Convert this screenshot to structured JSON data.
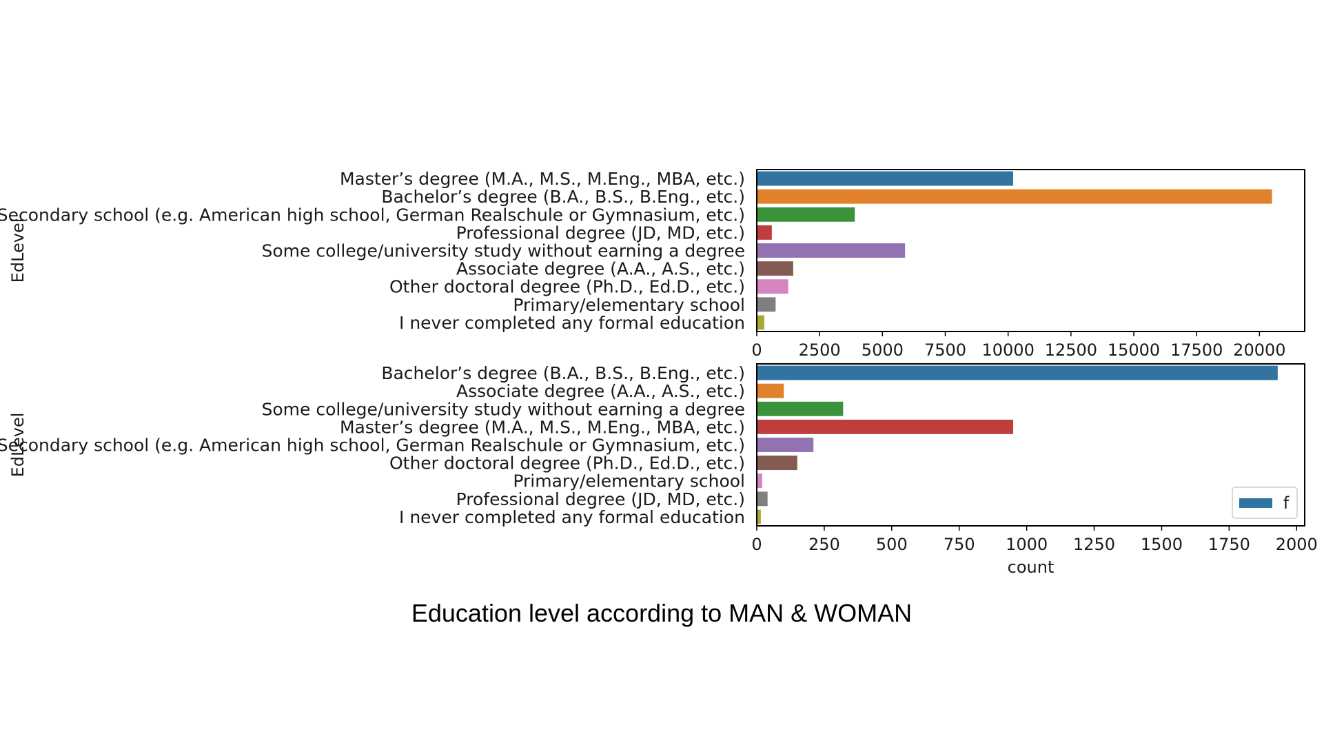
{
  "caption": "Education level according to MAN & WOMAN",
  "chart_data": [
    {
      "type": "bar",
      "orientation": "horizontal",
      "ylabel": "EdLevel",
      "xlabel": "",
      "xlim": [
        0,
        21800
      ],
      "xticks": [
        0,
        2500,
        5000,
        7500,
        10000,
        12500,
        15000,
        17500,
        20000
      ],
      "grid": false,
      "categories": [
        "Master’s degree (M.A., M.S., M.Eng., MBA, etc.)",
        "Bachelor’s degree (B.A., B.S., B.Eng., etc.)",
        "Secondary school (e.g. American high school, German Realschule or Gymnasium, etc.)",
        "Professional degree (JD, MD, etc.)",
        "Some college/university study without earning a degree",
        "Associate degree (A.A., A.S., etc.)",
        "Other doctoral degree (Ph.D., Ed.D., etc.)",
        "Primary/elementary school",
        "I never completed any formal education"
      ],
      "values": [
        10200,
        20500,
        3900,
        600,
        5900,
        1450,
        1250,
        750,
        300
      ],
      "colors": [
        "#3274a1",
        "#e1812c",
        "#3a923a",
        "#c03d3e",
        "#9372b2",
        "#845b53",
        "#d684bd",
        "#7f7f7f",
        "#a9aa35"
      ]
    },
    {
      "type": "bar",
      "orientation": "horizontal",
      "ylabel": "EdLevel",
      "xlabel": "count",
      "xlim": [
        0,
        2030
      ],
      "xticks": [
        0,
        250,
        500,
        750,
        1000,
        1250,
        1500,
        1750,
        2000
      ],
      "grid": false,
      "categories": [
        "Bachelor’s degree (B.A., B.S., B.Eng., etc.)",
        "Associate degree (A.A., A.S., etc.)",
        "Some college/university study without earning a degree",
        "Master’s degree (M.A., M.S., M.Eng., MBA, etc.)",
        "Secondary school (e.g. American high school, German Realschule or Gymnasium, etc.)",
        "Other doctoral degree (Ph.D., Ed.D., etc.)",
        "Primary/elementary school",
        "Professional degree (JD, MD, etc.)",
        "I never completed any formal education"
      ],
      "values": [
        1930,
        100,
        320,
        950,
        210,
        150,
        20,
        40,
        15
      ],
      "colors": [
        "#3274a1",
        "#e1812c",
        "#3a923a",
        "#c03d3e",
        "#9372b2",
        "#845b53",
        "#d684bd",
        "#7f7f7f",
        "#a9aa35"
      ],
      "legend": {
        "label": "f",
        "color": "#3274a1",
        "position": "lower-right"
      }
    }
  ]
}
